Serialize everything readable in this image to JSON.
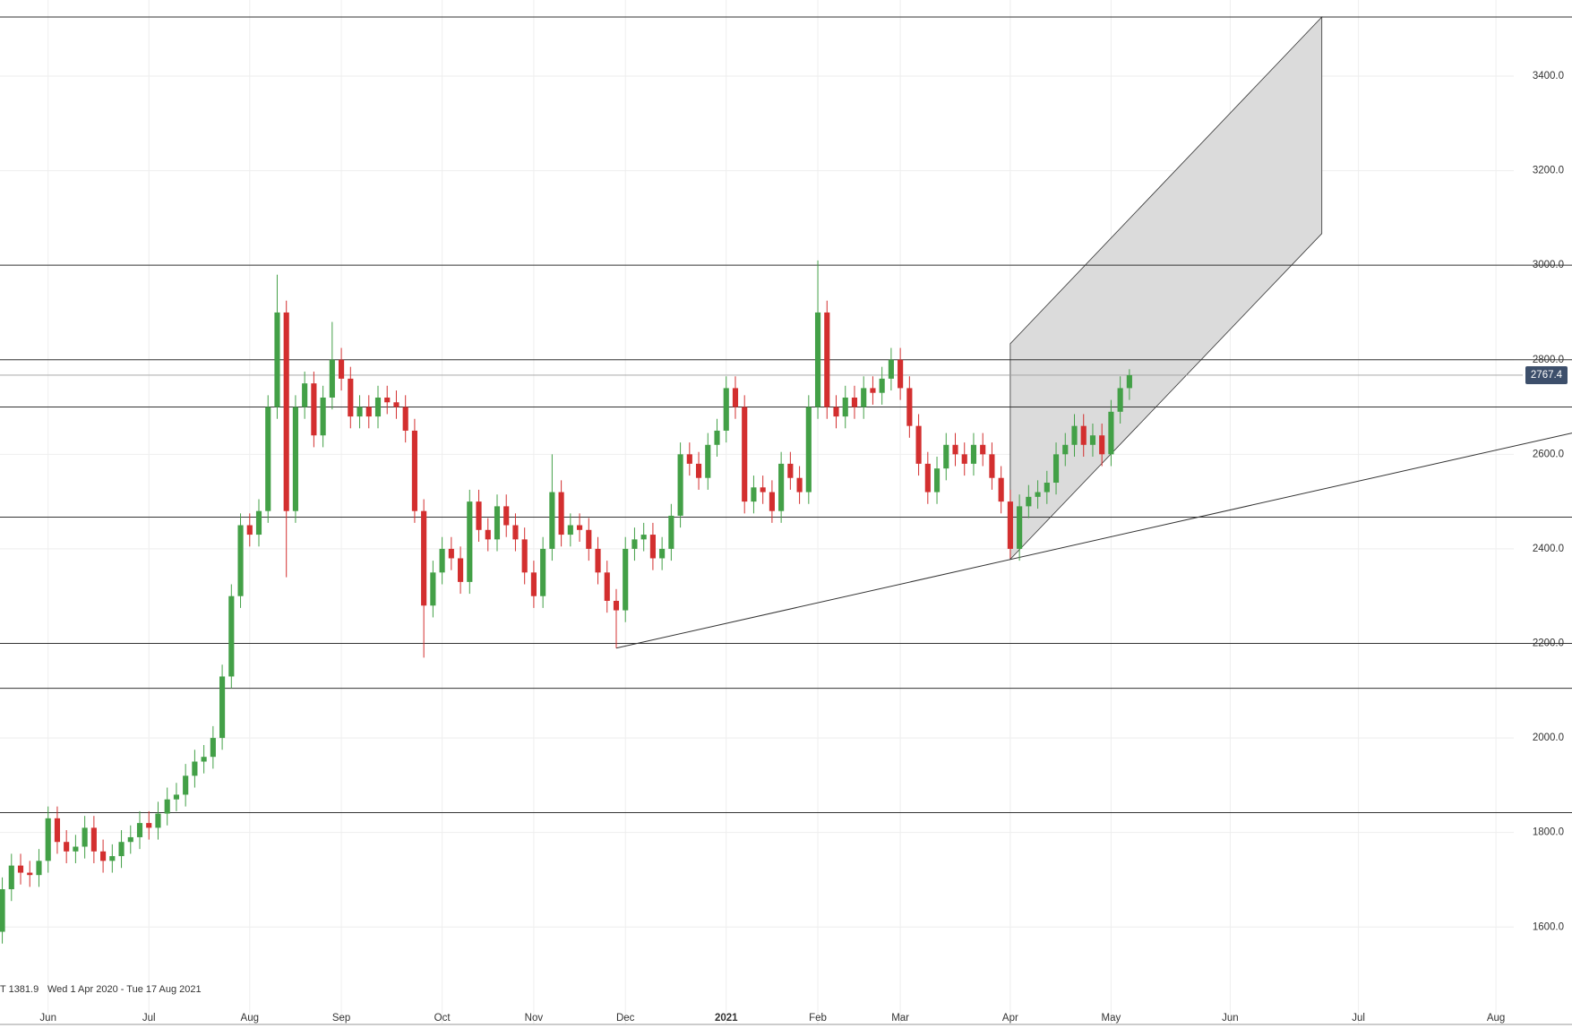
{
  "chart_data": {
    "type": "candlestick",
    "up_color": "#43a047",
    "down_color": "#d32f2f",
    "line_color": "#333333",
    "channel_color": "#d9d9d9",
    "grid": true,
    "ylim": [
      1430,
      3561
    ],
    "yticks": [
      {
        "value": 1600,
        "label": "1600.0"
      },
      {
        "value": 1800,
        "label": "1800.0"
      },
      {
        "value": 2000,
        "label": "2000.0"
      },
      {
        "value": 2200,
        "label": "2200.0"
      },
      {
        "value": 2400,
        "label": "2400.0"
      },
      {
        "value": 2600,
        "label": "2600.0"
      },
      {
        "value": 2800,
        "label": "2800.0"
      },
      {
        "value": 3000,
        "label": "3000.0"
      },
      {
        "value": 3200,
        "label": "3200.0"
      },
      {
        "value": 3400,
        "label": "3400.0"
      }
    ],
    "xlim": [
      -0.25,
      171.3
    ],
    "xticks": [
      {
        "value": 5,
        "label": "Jun"
      },
      {
        "value": 16,
        "label": "Jul"
      },
      {
        "value": 27,
        "label": "Aug"
      },
      {
        "value": 37,
        "label": "Sep"
      },
      {
        "value": 48,
        "label": "Oct"
      },
      {
        "value": 58,
        "label": "Nov"
      },
      {
        "value": 68,
        "label": "Dec"
      },
      {
        "value": 79,
        "label": "2021"
      },
      {
        "value": 89,
        "label": "Feb"
      },
      {
        "value": 98,
        "label": "Mar"
      },
      {
        "value": 110,
        "label": "Apr"
      },
      {
        "value": 121,
        "label": "May"
      },
      {
        "value": 134,
        "label": "Jun"
      },
      {
        "value": 148,
        "label": "Jul"
      },
      {
        "value": 163,
        "label": "Aug"
      }
    ],
    "low_label": "T 1381.9",
    "range_label": "Wed 1 Apr 2020 - Tue 17 Aug 2021",
    "open": [
      1590,
      1680,
      1730,
      1715,
      1710,
      1740,
      1830,
      1780,
      1760,
      1770,
      1810,
      1760,
      1740,
      1750,
      1780,
      1790,
      1820,
      1810,
      1840,
      1870,
      1880,
      1920,
      1950,
      1960,
      2000,
      2130,
      2300,
      2450,
      2430,
      2480,
      2700,
      2900,
      2480,
      2700,
      2750,
      2640,
      2720,
      2800,
      2760,
      2680,
      2700,
      2680,
      2720,
      2710,
      2700,
      2650,
      2480,
      2280,
      2350,
      2400,
      2380,
      2330,
      2500,
      2440,
      2420,
      2490,
      2450,
      2420,
      2350,
      2300,
      2400,
      2520,
      2430,
      2450,
      2440,
      2400,
      2350,
      2290,
      2270,
      2400,
      2420,
      2430,
      2380,
      2400,
      2470,
      2600,
      2580,
      2550,
      2620,
      2650,
      2740,
      2700,
      2500,
      2530,
      2520,
      2480,
      2580,
      2550,
      2520,
      2700,
      2900,
      2700,
      2680,
      2720,
      2700,
      2740,
      2730,
      2760,
      2800,
      2740,
      2660,
      2580,
      2520,
      2570,
      2620,
      2600,
      2580,
      2620,
      2600,
      2550,
      2500,
      2400,
      2490,
      2510,
      2520,
      2540,
      2600,
      2620,
      2660,
      2620,
      2640,
      2600,
      2690,
      2740
    ],
    "high": [
      1705,
      1755,
      1755,
      1740,
      1765,
      1855,
      1855,
      1805,
      1795,
      1835,
      1835,
      1785,
      1775,
      1805,
      1815,
      1845,
      1845,
      1865,
      1895,
      1905,
      1945,
      1975,
      1985,
      2025,
      2155,
      2325,
      2475,
      2475,
      2505,
      2725,
      2980,
      2925,
      2725,
      2775,
      2775,
      2745,
      2880,
      2825,
      2785,
      2725,
      2725,
      2745,
      2745,
      2735,
      2725,
      2675,
      2505,
      2375,
      2425,
      2425,
      2405,
      2525,
      2525,
      2465,
      2515,
      2515,
      2475,
      2445,
      2375,
      2425,
      2600,
      2545,
      2475,
      2475,
      2465,
      2425,
      2375,
      2315,
      2425,
      2445,
      2455,
      2455,
      2425,
      2495,
      2625,
      2625,
      2605,
      2645,
      2675,
      2765,
      2765,
      2725,
      2555,
      2555,
      2545,
      2605,
      2605,
      2575,
      2725,
      3010,
      2925,
      2725,
      2745,
      2745,
      2765,
      2765,
      2785,
      2825,
      2825,
      2765,
      2685,
      2605,
      2595,
      2645,
      2645,
      2625,
      2645,
      2645,
      2625,
      2575,
      2525,
      2515,
      2535,
      2545,
      2565,
      2625,
      2645,
      2685,
      2685,
      2665,
      2665,
      2715,
      2765,
      2780
    ],
    "low": [
      1565,
      1655,
      1690,
      1685,
      1685,
      1715,
      1755,
      1735,
      1735,
      1745,
      1735,
      1715,
      1715,
      1725,
      1755,
      1765,
      1785,
      1785,
      1815,
      1845,
      1855,
      1895,
      1925,
      1935,
      1975,
      2105,
      2275,
      2405,
      2405,
      2455,
      2675,
      2340,
      2455,
      2675,
      2615,
      2615,
      2695,
      2735,
      2655,
      2655,
      2655,
      2655,
      2685,
      2675,
      2625,
      2455,
      2170,
      2255,
      2325,
      2355,
      2305,
      2305,
      2415,
      2395,
      2395,
      2425,
      2395,
      2325,
      2275,
      2275,
      2375,
      2405,
      2405,
      2415,
      2375,
      2325,
      2265,
      2190,
      2245,
      2375,
      2395,
      2355,
      2355,
      2375,
      2445,
      2555,
      2525,
      2525,
      2595,
      2625,
      2675,
      2475,
      2475,
      2495,
      2455,
      2455,
      2525,
      2495,
      2495,
      2675,
      2675,
      2655,
      2655,
      2675,
      2675,
      2705,
      2705,
      2735,
      2715,
      2635,
      2555,
      2495,
      2495,
      2545,
      2575,
      2555,
      2555,
      2575,
      2525,
      2475,
      2380,
      2375,
      2465,
      2485,
      2495,
      2515,
      2575,
      2595,
      2595,
      2595,
      2575,
      2575,
      2665,
      2715
    ],
    "close": [
      1680,
      1730,
      1715,
      1710,
      1740,
      1830,
      1780,
      1760,
      1770,
      1810,
      1760,
      1740,
      1750,
      1780,
      1790,
      1820,
      1810,
      1840,
      1870,
      1880,
      1920,
      1950,
      1960,
      2000,
      2130,
      2300,
      2450,
      2430,
      2480,
      2700,
      2900,
      2480,
      2700,
      2750,
      2640,
      2720,
      2800,
      2760,
      2680,
      2700,
      2680,
      2720,
      2710,
      2700,
      2650,
      2480,
      2280,
      2350,
      2400,
      2380,
      2330,
      2500,
      2440,
      2420,
      2490,
      2450,
      2420,
      2350,
      2300,
      2400,
      2520,
      2430,
      2450,
      2440,
      2400,
      2350,
      2290,
      2270,
      2400,
      2420,
      2430,
      2380,
      2400,
      2470,
      2600,
      2580,
      2550,
      2620,
      2650,
      2740,
      2700,
      2500,
      2530,
      2520,
      2480,
      2580,
      2550,
      2520,
      2700,
      2900,
      2700,
      2680,
      2720,
      2700,
      2740,
      2730,
      2760,
      2800,
      2740,
      2660,
      2580,
      2520,
      2570,
      2620,
      2600,
      2580,
      2620,
      2600,
      2550,
      2500,
      2400,
      2490,
      2510,
      2520,
      2540,
      2600,
      2620,
      2660,
      2620,
      2640,
      2600,
      2690,
      2740,
      2767.4
    ],
    "hlines": [
      3525,
      3000,
      2800,
      2700,
      2467,
      2200,
      2105,
      1842
    ],
    "trendline": {
      "x": [
        67,
        171.3
      ],
      "y": [
        2190,
        2645
      ]
    },
    "channel": {
      "x": [
        110,
        144,
        144,
        110
      ],
      "y": [
        2834,
        3525,
        3067,
        2378
      ]
    }
  }
}
